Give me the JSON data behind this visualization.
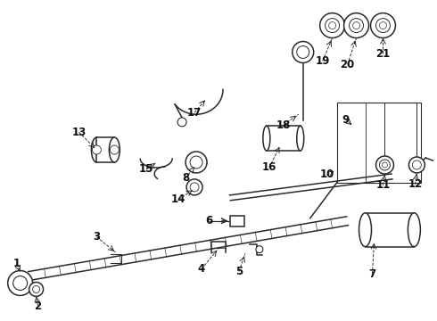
{
  "bg_color": "#ffffff",
  "line_color": "#2a2a2a",
  "label_color": "#111111",
  "figsize": [
    4.9,
    3.6
  ],
  "dpi": 100,
  "label_fontsize": 8.5
}
